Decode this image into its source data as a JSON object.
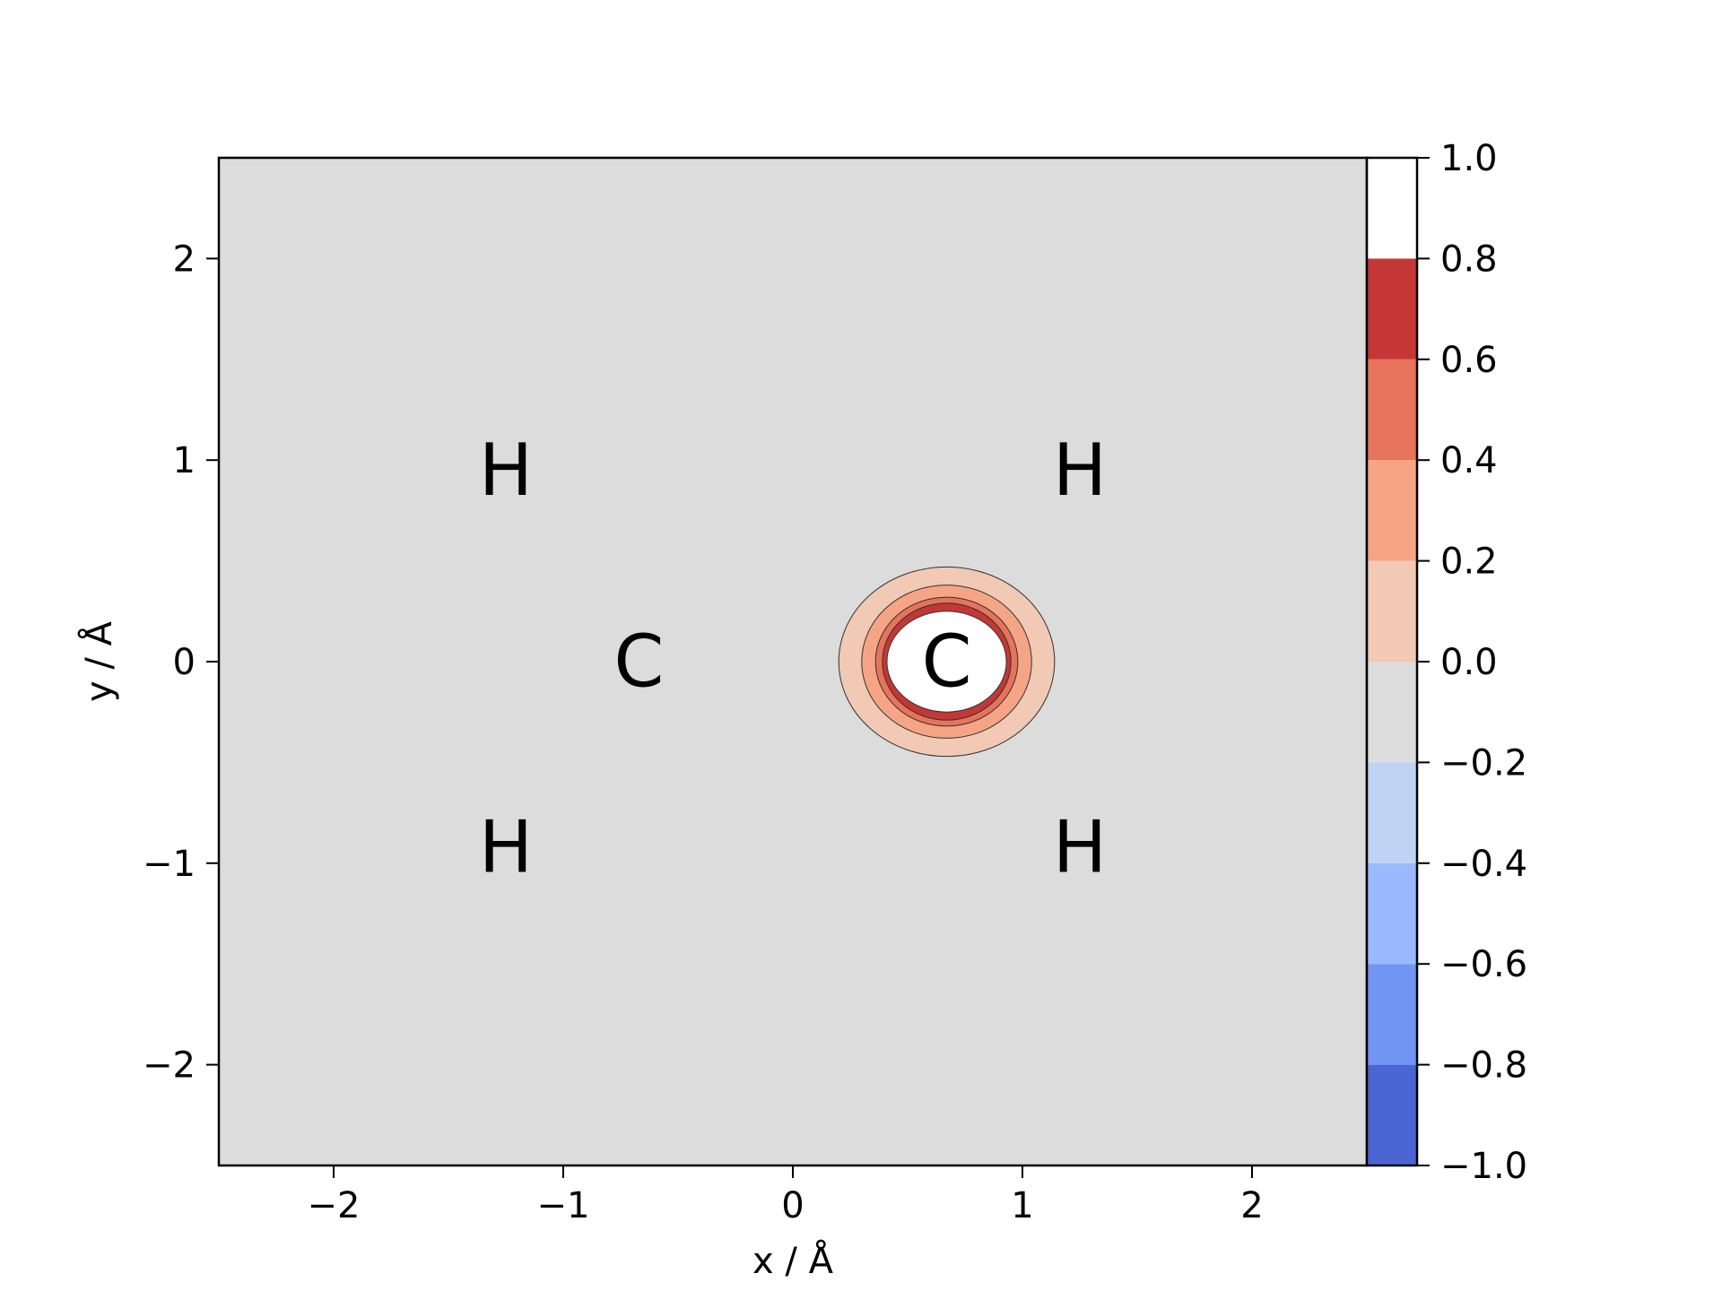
{
  "chart_data": {
    "type": "contour",
    "title": "",
    "xlabel": "x / Å",
    "ylabel": "y / Å",
    "xlim": [
      -2.5,
      2.5
    ],
    "ylim": [
      -2.5,
      2.5
    ],
    "xticks": [
      -2,
      -1,
      0,
      1,
      2
    ],
    "xtick_labels": [
      "−2",
      "−1",
      "0",
      "1",
      "2"
    ],
    "yticks": [
      -2,
      -1,
      0,
      1,
      2
    ],
    "ytick_labels": [
      "−2",
      "−1",
      "0",
      "1",
      "2"
    ],
    "grid": false,
    "colormap": "coolwarm",
    "colorbar": {
      "range": [
        -1.0,
        1.0
      ],
      "levels": [
        -1.0,
        -0.8,
        -0.6,
        -0.4,
        -0.2,
        0.0,
        0.2,
        0.4,
        0.6,
        0.8,
        1.0
      ],
      "ticks": [
        -1.0,
        -0.8,
        -0.6,
        -0.4,
        -0.2,
        0.0,
        0.2,
        0.4,
        0.6,
        0.8,
        1.0
      ],
      "tick_labels": [
        "−1.0",
        "−0.8",
        "−0.6",
        "−0.4",
        "−0.2",
        "0.0",
        "0.2",
        "0.4",
        "0.6",
        "0.8",
        "1.0"
      ],
      "band_colors": [
        "#4b65d3",
        "#7195f2",
        "#9ab9fe",
        "#c1d3f3",
        "#dcdcdc",
        "#f1c9b4",
        "#f5a585",
        "#e7735b",
        "#c43736",
        "#ffffff"
      ]
    },
    "background_level_color": "#dcdcdc",
    "feature": {
      "center": [
        0.67,
        0.0
      ],
      "contours": [
        {
          "level": 0.2,
          "rx": 0.47,
          "ry": 0.47,
          "color": "#f1c9b4"
        },
        {
          "level": 0.4,
          "rx": 0.37,
          "ry": 0.38,
          "color": "#f5a585"
        },
        {
          "level": 0.6,
          "rx": 0.31,
          "ry": 0.32,
          "color": "#e7735b"
        },
        {
          "level": 0.8,
          "rx": 0.28,
          "ry": 0.29,
          "color": "#c43736"
        },
        {
          "level": 1.0,
          "rx": 0.26,
          "ry": 0.25,
          "color": "#ffffff"
        }
      ]
    },
    "annotations": [
      {
        "text": "H",
        "x": -1.25,
        "y": 0.95
      },
      {
        "text": "H",
        "x": 1.25,
        "y": 0.95
      },
      {
        "text": "C",
        "x": -0.67,
        "y": 0.0
      },
      {
        "text": "C",
        "x": 0.67,
        "y": 0.0
      },
      {
        "text": "H",
        "x": -1.25,
        "y": -0.92
      },
      {
        "text": "H",
        "x": 1.25,
        "y": -0.92
      }
    ]
  }
}
